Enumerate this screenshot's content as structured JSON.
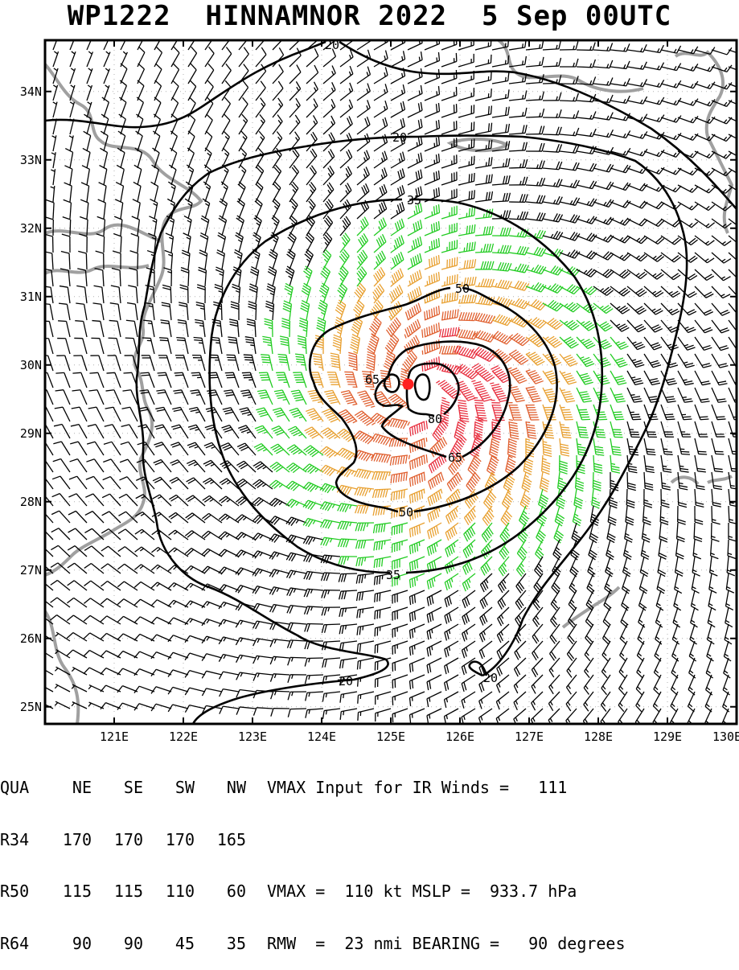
{
  "title": "WP1222  HINNAMNOR 2022  5 Sep 00UTC",
  "map": {
    "lon_labels": [
      "121E",
      "122E",
      "123E",
      "124E",
      "125E",
      "126E",
      "127E",
      "128E",
      "129E",
      "130E"
    ],
    "lat_labels": [
      "34N",
      "33N",
      "32N",
      "31N",
      "30N",
      "29N",
      "28N",
      "27N",
      "26N",
      "25N"
    ],
    "lon_range": [
      120.0,
      130.0
    ],
    "lat_range": [
      24.75,
      34.75
    ],
    "storm_center": {
      "lon": 125.25,
      "lat": 29.72
    },
    "contours": [
      {
        "label": "20",
        "color": "#000000"
      },
      {
        "label": "35",
        "color": "#000000"
      },
      {
        "label": "50",
        "color": "#000000"
      },
      {
        "label": "65",
        "color": "#000000"
      },
      {
        "label": "80",
        "color": "#000000"
      }
    ],
    "barb_colors": {
      "below_35": "#000000",
      "35_to_50": "#22cc22",
      "50_to_65": "#e8a030",
      "65_to_80": "#e06030",
      "above_80": "#e83040"
    },
    "coast_color": "#a0a0a0",
    "center_color": "#ff2020"
  },
  "table": {
    "header": {
      "qua": "QUA",
      "ne": "NE",
      "se": "SE",
      "sw": "SW",
      "nw": "NW",
      "info": "VMAX Input for IR Winds =   111"
    },
    "rows": [
      {
        "qua": "R34",
        "ne": "170",
        "se": "170",
        "sw": "170",
        "nw": "165",
        "info": ""
      },
      {
        "qua": "R50",
        "ne": "115",
        "se": "115",
        "sw": "110",
        "nw": "60",
        "info": "VMAX =  110 kt MSLP =  933.7 hPa"
      },
      {
        "qua": "R64",
        "ne": "90",
        "se": "90",
        "sw": "45",
        "nw": "35",
        "info": "RMW  =  23 nmi BEARING =   90 degrees"
      }
    ]
  }
}
